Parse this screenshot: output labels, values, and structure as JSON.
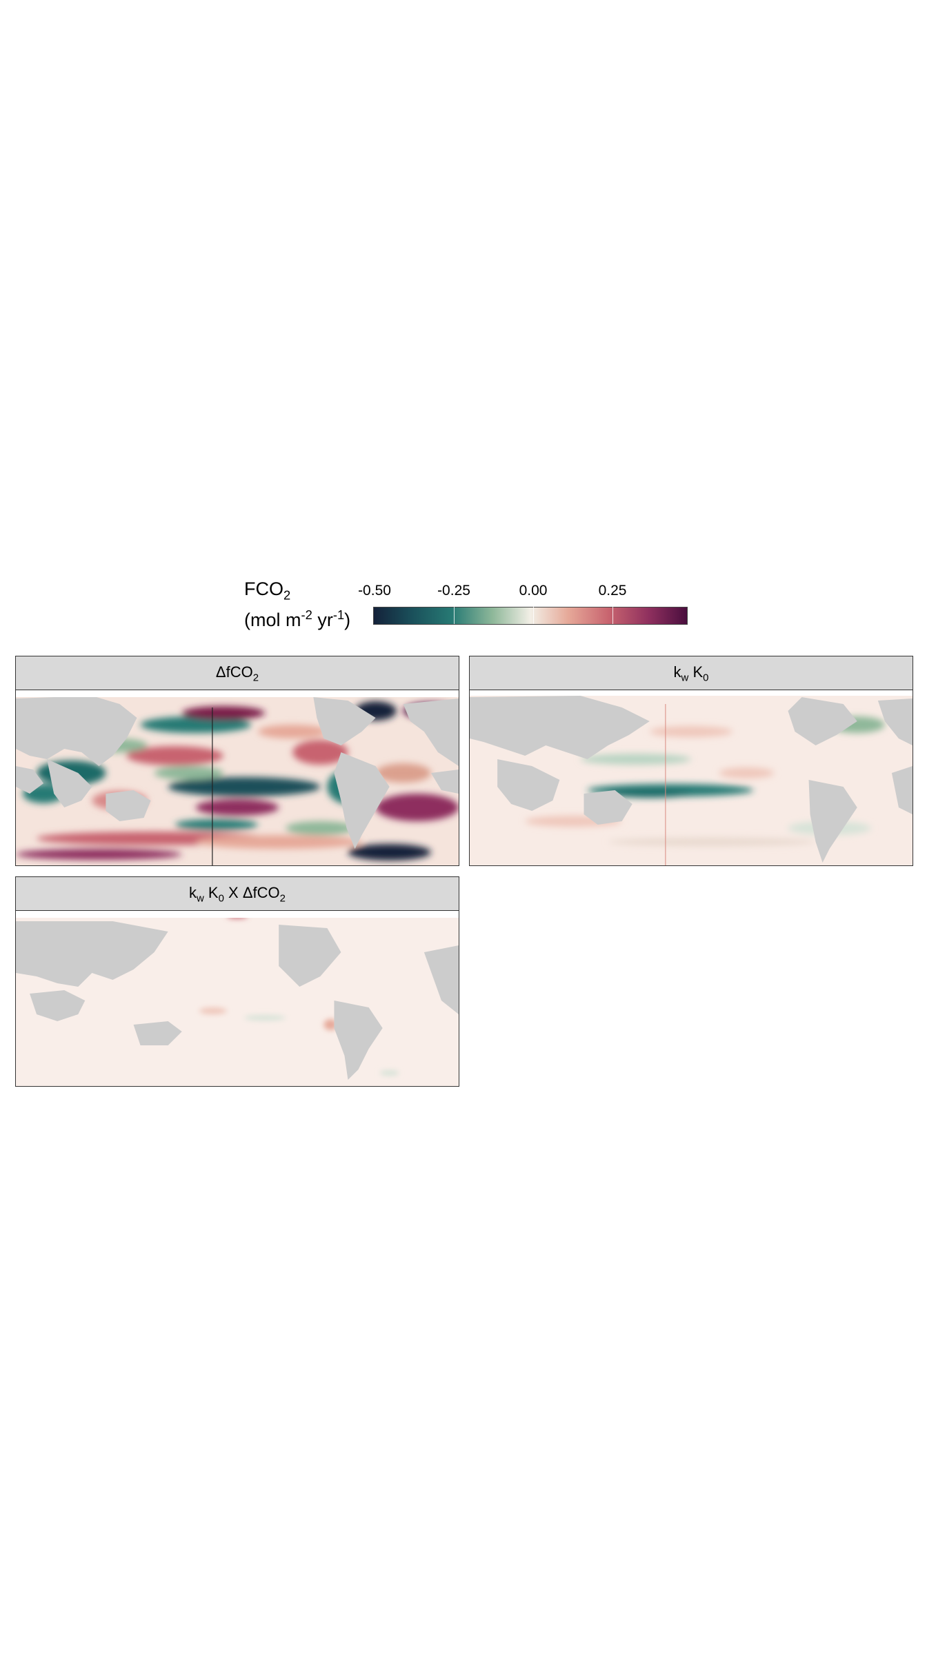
{
  "legend": {
    "title_main": "FCO",
    "title_sub": "2",
    "unit_prefix": "(mol m",
    "unit_sup1": "-2",
    "unit_mid": " yr",
    "unit_sup2": "-1",
    "unit_suffix": ")",
    "ticks": [
      "-0.50",
      "-0.25",
      "0.00",
      "0.25"
    ],
    "colors": [
      "#14223a",
      "#277a74",
      "#f2efe6",
      "#c8646f",
      "#4a0e3e"
    ]
  },
  "panels": [
    {
      "id": "dfco2",
      "parts": [
        [
          "Δ",
          ""
        ],
        [
          "fCO",
          ""
        ],
        [
          "2",
          "sub"
        ]
      ]
    },
    {
      "id": "kwk0",
      "parts": [
        [
          "k",
          ""
        ],
        [
          "w",
          "sub"
        ],
        [
          " K",
          ""
        ],
        [
          "0",
          "sub"
        ]
      ]
    },
    {
      "id": "product",
      "parts": [
        [
          "k",
          ""
        ],
        [
          "w",
          "sub"
        ],
        [
          " K",
          ""
        ],
        [
          "0",
          "sub"
        ],
        [
          " X Δ",
          ""
        ],
        [
          "fCO",
          ""
        ],
        [
          "2",
          "sub"
        ]
      ]
    }
  ],
  "map_colors": {
    "land": "#cccccc",
    "ice": "#ffffff",
    "ocean_neutral": "#f8eee8"
  }
}
